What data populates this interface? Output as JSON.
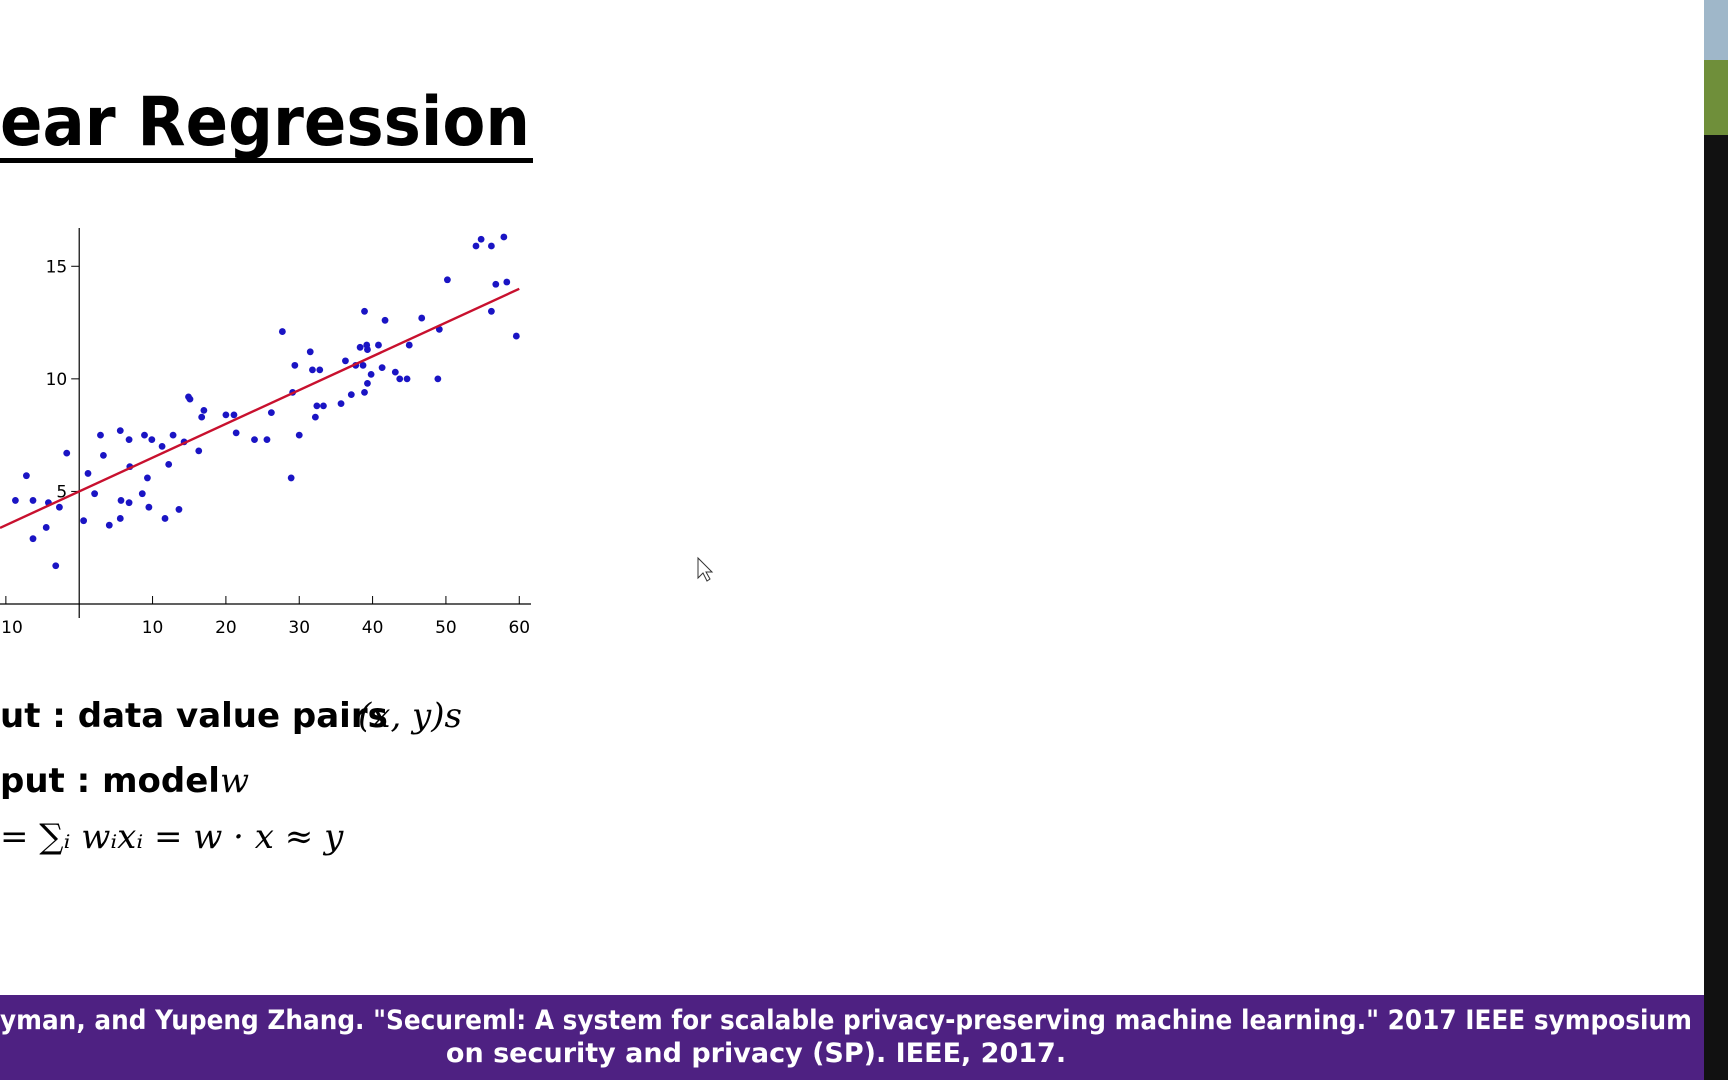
{
  "slide": {
    "title": "ear Regression",
    "bullets": [
      {
        "text": "ut : data value pairs",
        "math": "(x, y)s"
      },
      {
        "text": "put : model",
        "math": "w"
      }
    ],
    "formula": "= ∑ᵢ wᵢxᵢ = w · x ≈ y",
    "footer": [
      "yman, and Yupeng Zhang. \"Secureml: A system for scalable privacy-preserving machine learning.\" 2017 IEEE symposium",
      "on security and privacy (SP). IEEE, 2017."
    ]
  },
  "chart_data": {
    "type": "scatter",
    "x": [
      -8.7,
      -7.2,
      -6.3,
      -6.3,
      -4.5,
      -4.2,
      -3.2,
      -2.7,
      -1.7,
      0.6,
      1.2,
      2.1,
      2.9,
      3.3,
      4.1,
      5.6,
      5.6,
      5.7,
      6.8,
      6.8,
      6.9,
      8.6,
      8.9,
      9.3,
      9.5,
      9.9,
      11.3,
      11.7,
      12.2,
      12.8,
      13.6,
      14.3,
      14.9,
      15.1,
      16.3,
      16.7,
      17.0,
      20.0,
      21.1,
      21.4,
      23.9,
      25.6,
      26.2,
      27.7,
      28.9,
      29.1,
      29.4,
      30.0,
      31.5,
      31.8,
      32.2,
      32.4,
      32.8,
      33.3,
      35.7,
      36.3,
      37.1,
      37.7,
      38.3,
      38.7,
      38.9,
      38.9,
      39.2,
      39.3,
      39.3,
      39.8,
      40.8,
      41.3,
      41.7,
      43.1,
      43.7,
      44.7,
      45.0,
      46.7,
      48.9,
      49.1,
      50.2,
      54.1,
      54.8,
      56.2,
      56.2,
      56.8,
      57.9,
      58.3,
      59.6
    ],
    "values": [
      4.6,
      5.7,
      4.6,
      2.9,
      3.4,
      4.5,
      1.7,
      4.3,
      6.7,
      3.7,
      5.8,
      4.9,
      7.5,
      6.6,
      3.5,
      3.8,
      7.7,
      4.6,
      7.3,
      4.5,
      6.1,
      4.9,
      7.5,
      5.6,
      4.3,
      7.3,
      7.0,
      3.8,
      6.2,
      7.5,
      4.2,
      7.2,
      9.2,
      9.1,
      6.8,
      8.3,
      8.6,
      8.4,
      8.4,
      7.6,
      7.3,
      7.3,
      8.5,
      12.1,
      5.6,
      9.4,
      10.6,
      7.5,
      11.2,
      10.4,
      8.3,
      8.8,
      10.4,
      8.8,
      8.9,
      10.8,
      9.3,
      10.6,
      11.4,
      10.6,
      13.0,
      9.4,
      11.5,
      11.3,
      9.8,
      10.2,
      11.5,
      10.5,
      12.6,
      10.3,
      10.0,
      10.0,
      11.5,
      12.7,
      10.0,
      12.2,
      14.4,
      15.9,
      16.2,
      15.9,
      13.0,
      14.2,
      16.3,
      14.3,
      11.9
    ],
    "color": "#1a14c4",
    "line": {
      "x": [
        -10.8,
        60
      ],
      "values": [
        3.38,
        14
      ],
      "color": "#c8102e"
    },
    "xlim": [
      -10.8,
      61.6
    ],
    "ylim": [
      0,
      16.7
    ],
    "xticks": [
      {
        "value": -10,
        "label": "10"
      },
      10,
      20,
      30,
      40,
      50,
      60
    ],
    "yticks": [
      5,
      10,
      15
    ]
  }
}
